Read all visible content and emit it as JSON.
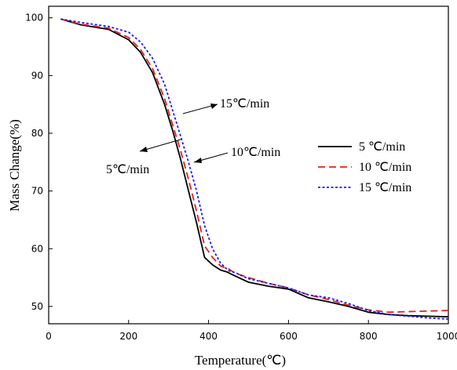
{
  "chart_data": {
    "type": "line",
    "title": "",
    "xlabel": "Temperature(℃)",
    "ylabel": "Mass Change(%)",
    "xlim": [
      0,
      1000
    ],
    "ylim": [
      47,
      102
    ],
    "xticks": [
      0,
      200,
      400,
      600,
      800,
      1000
    ],
    "yticks": [
      50,
      60,
      70,
      80,
      90,
      100
    ],
    "grid": false,
    "legend_position": "right",
    "series": [
      {
        "name": "5 ℃/min",
        "color": "#000000",
        "style": "solid",
        "x": [
          30,
          80,
          150,
          200,
          230,
          260,
          290,
          310,
          330,
          350,
          370,
          390,
          410,
          430,
          445,
          460,
          500,
          550,
          600,
          650,
          700,
          750,
          800,
          850,
          900,
          950,
          1000
        ],
        "y": [
          99.8,
          98.8,
          98.0,
          96.2,
          94.0,
          90.5,
          85.0,
          80.5,
          75.5,
          70.0,
          64.5,
          58.5,
          57.2,
          56.3,
          56.0,
          55.5,
          54.2,
          53.5,
          53.0,
          51.5,
          50.8,
          50.0,
          49.0,
          48.6,
          48.4,
          48.3,
          48.2
        ]
      },
      {
        "name": "10 ℃/min",
        "color": "#e02020",
        "style": "dashed",
        "x": [
          30,
          80,
          150,
          200,
          230,
          260,
          290,
          310,
          330,
          350,
          370,
          390,
          410,
          430,
          450,
          465,
          500,
          550,
          600,
          650,
          700,
          750,
          800,
          850,
          900,
          950,
          1000
        ],
        "y": [
          99.8,
          98.9,
          98.2,
          96.6,
          94.5,
          91.2,
          86.0,
          81.5,
          77.0,
          72.0,
          66.5,
          60.5,
          58.5,
          57.0,
          56.5,
          55.8,
          55.0,
          54.0,
          53.2,
          52.0,
          51.2,
          50.2,
          49.4,
          49.0,
          49.1,
          49.2,
          49.3
        ]
      },
      {
        "name": "15 ℃/min",
        "color": "#1a1aff",
        "style": "dotted",
        "x": [
          30,
          80,
          150,
          200,
          230,
          260,
          290,
          310,
          330,
          350,
          370,
          390,
          410,
          430,
          450,
          465,
          500,
          550,
          600,
          650,
          700,
          750,
          800,
          850,
          900,
          950,
          1000
        ],
        "y": [
          99.8,
          99.2,
          98.5,
          97.5,
          95.8,
          93.0,
          88.5,
          84.0,
          79.5,
          75.0,
          70.0,
          64.0,
          60.0,
          57.5,
          56.2,
          55.9,
          54.8,
          54.0,
          53.2,
          52.0,
          51.5,
          50.5,
          49.3,
          48.6,
          48.3,
          48.0,
          47.8
        ]
      }
    ],
    "annotations": [
      {
        "text": "15℃/min"
      },
      {
        "text": "10℃/min"
      },
      {
        "text": "5℃/min"
      }
    ]
  }
}
